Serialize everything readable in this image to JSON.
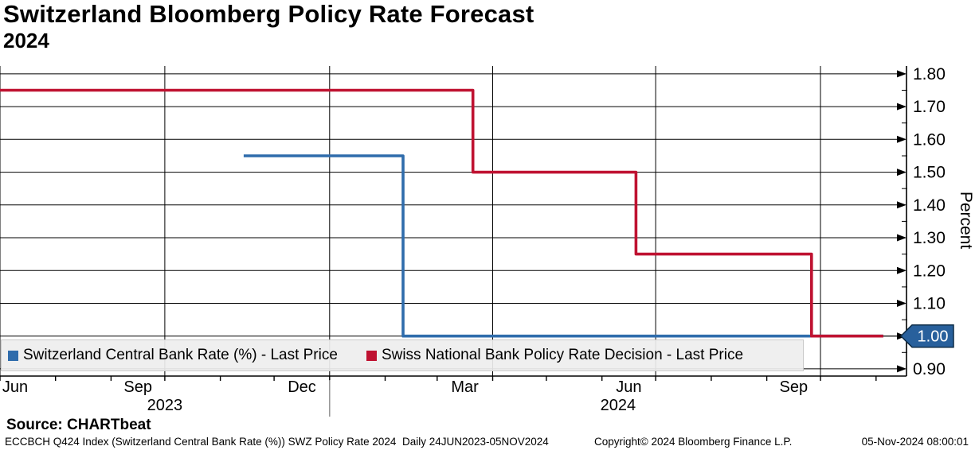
{
  "title": "Switzerland Bloomberg Policy Rate Forecast",
  "subtitle": "2024",
  "source_line": "Source: CHARTbeat",
  "footer": {
    "left": "ECCBCH Q424 Index (Switzerland Central Bank Rate (%)) SWZ Policy Rate 2024  Daily 24JUN2023-05NOV2024",
    "copyright": "Copyright© 2024 Bloomberg Finance L.P.",
    "timestamp": "05-Nov-2024 08:00:01"
  },
  "colors": {
    "blue": "#2f6cac",
    "red": "#bf1231",
    "grid": "#000000",
    "axis": "#000000",
    "legend_bg": "#eeeeee",
    "year_divider": "#8c8c8c",
    "tag_fill": "#28609c",
    "tag_border": "#0c2b46",
    "tag_text": "#ffffff"
  },
  "chart_data": {
    "type": "line",
    "step": true,
    "title": "Switzerland Bloomberg Policy Rate Forecast 2024",
    "xlabel": "",
    "ylabel": "Percent",
    "ylim": [
      0.878,
      1.824
    ],
    "grid": true,
    "legend_position": "bottom-left",
    "yticks": [
      {
        "value": 0.9,
        "label": "0.90"
      },
      {
        "value": 1.0,
        "label": "1.00"
      },
      {
        "value": 1.1,
        "label": "1.10"
      },
      {
        "value": 1.2,
        "label": "1.20"
      },
      {
        "value": 1.3,
        "label": "1.30"
      },
      {
        "value": 1.4,
        "label": "1.40"
      },
      {
        "value": 1.5,
        "label": "1.50"
      },
      {
        "value": 1.6,
        "label": "1.60"
      },
      {
        "value": 1.7,
        "label": "1.70"
      },
      {
        "value": 1.8,
        "label": "1.80"
      }
    ],
    "x_domain": [
      "2023-07-01",
      "2024-11-18"
    ],
    "x_gridlines": [
      "2023-07-01",
      "2023-10-01",
      "2024-01-01",
      "2024-04-01",
      "2024-07-01",
      "2024-10-01"
    ],
    "x_minor_ticks": [
      "2023-07-01",
      "2023-08-01",
      "2023-09-01",
      "2023-10-01",
      "2023-11-01",
      "2023-12-01",
      "2024-01-01",
      "2024-02-01",
      "2024-03-01",
      "2024-04-01",
      "2024-05-01",
      "2024-06-01",
      "2024-07-01",
      "2024-08-01",
      "2024-09-01",
      "2024-10-01",
      "2024-11-01"
    ],
    "month_labels": [
      {
        "label": "Jun",
        "start": "2023-06-01",
        "end": "2023-07-01"
      },
      {
        "label": "Sep",
        "start": "2023-09-01",
        "end": "2023-10-01"
      },
      {
        "label": "Dec",
        "start": "2023-12-01",
        "end": "2024-01-01"
      },
      {
        "label": "Mar",
        "start": "2024-03-01",
        "end": "2024-04-01"
      },
      {
        "label": "Jun",
        "start": "2024-06-01",
        "end": "2024-07-01"
      },
      {
        "label": "Sep",
        "start": "2024-09-01",
        "end": "2024-10-01"
      }
    ],
    "year_labels": [
      {
        "label": "2023",
        "start": "2023-07-01",
        "end": "2024-01-01"
      },
      {
        "label": "2024",
        "start": "2024-01-01",
        "end": "2024-11-18"
      }
    ],
    "series": [
      {
        "name": "Switzerland Central Bank Rate (%) - Last Price",
        "color": "#2f6cac",
        "points": [
          [
            "2023-11-14",
            1.55
          ],
          [
            "2024-02-11",
            1.55
          ],
          [
            "2024-02-11",
            1.0
          ],
          [
            "2024-11-05",
            1.0
          ]
        ]
      },
      {
        "name": "Swiss National Bank Policy Rate Decision - Last Price",
        "color": "#bf1231",
        "points": [
          [
            "2023-06-24",
            1.75
          ],
          [
            "2024-03-21",
            1.75
          ],
          [
            "2024-03-21",
            1.5
          ],
          [
            "2024-06-20",
            1.5
          ],
          [
            "2024-06-20",
            1.25
          ],
          [
            "2024-09-26",
            1.25
          ],
          [
            "2024-09-26",
            1.0
          ],
          [
            "2024-11-05",
            1.0
          ]
        ]
      }
    ],
    "last_value": {
      "label": "1.00",
      "value": 1.0,
      "series": "Swiss National Bank Policy Rate Decision - Last Price"
    }
  }
}
